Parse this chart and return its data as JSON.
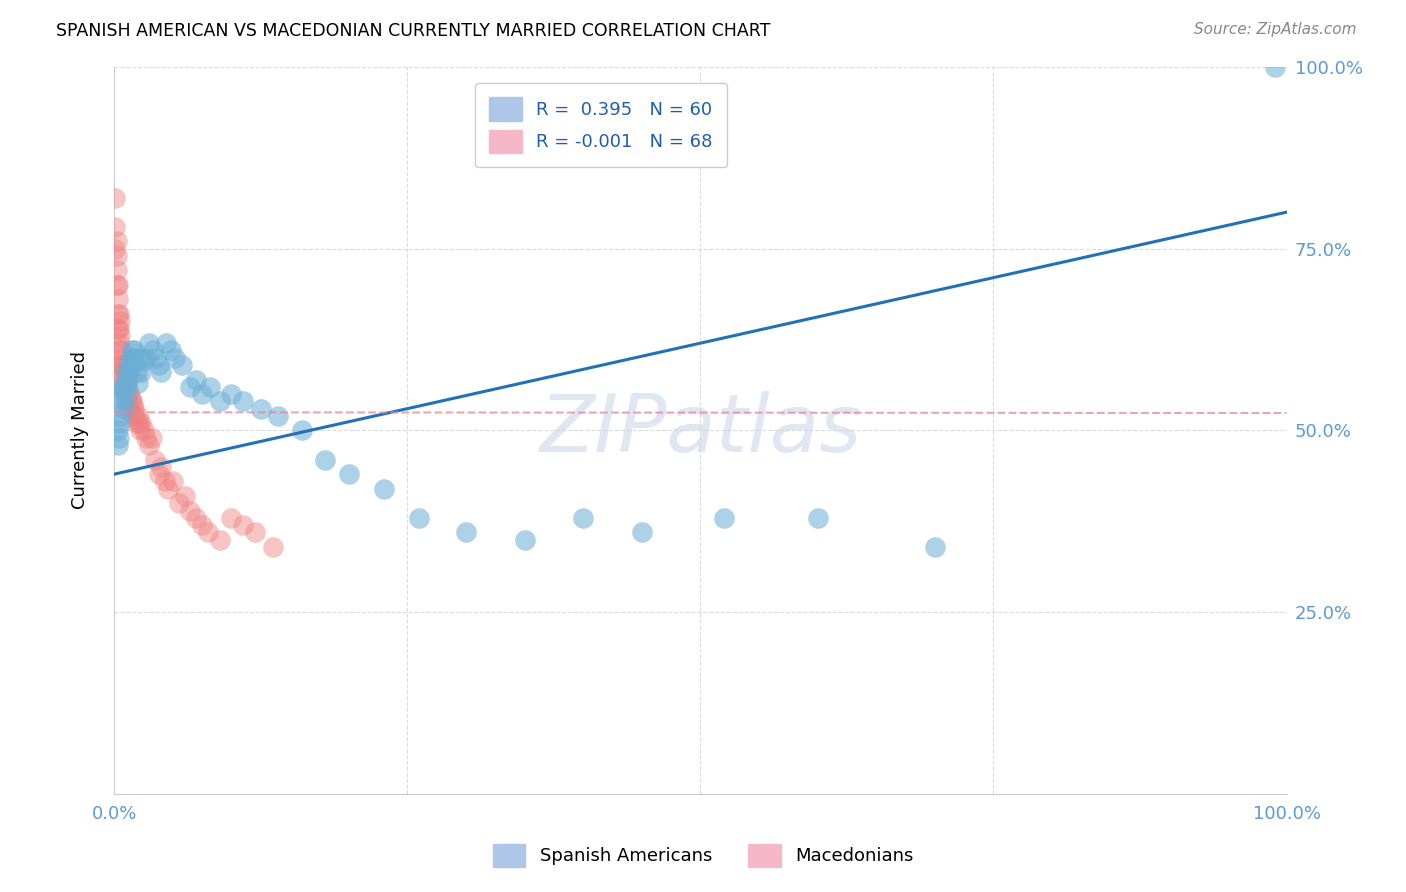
{
  "title": "SPANISH AMERICAN VS MACEDONIAN CURRENTLY MARRIED CORRELATION CHART",
  "source": "Source: ZipAtlas.com",
  "ylabel": "Currently Married",
  "xlim": [
    0,
    1.0
  ],
  "ylim": [
    0,
    1.0
  ],
  "blue_line_x": [
    0.0,
    1.0
  ],
  "blue_line_y": [
    0.44,
    0.8
  ],
  "pink_line_x": [
    0.0,
    1.0
  ],
  "pink_line_y": [
    0.525,
    0.524
  ],
  "blue_color": "#6baed6",
  "pink_color": "#f08080",
  "blue_fill_color": "#aec6e8",
  "pink_fill_color": "#f4b8c8",
  "blue_line_color": "#2171b5",
  "pink_line_color": "#e8849a",
  "watermark_color": "#ccd8ea",
  "grid_color": "#cccccc",
  "background_color": "#ffffff",
  "legend_r_blue": "R =  0.395",
  "legend_n_blue": "N = 60",
  "legend_r_pink": "R = -0.001",
  "legend_n_pink": "N = 68",
  "blue_scatter_x": [
    0.003,
    0.003,
    0.004,
    0.004,
    0.005,
    0.006,
    0.006,
    0.007,
    0.007,
    0.008,
    0.009,
    0.01,
    0.01,
    0.011,
    0.012,
    0.013,
    0.013,
    0.014,
    0.015,
    0.015,
    0.016,
    0.017,
    0.018,
    0.019,
    0.02,
    0.022,
    0.023,
    0.025,
    0.027,
    0.03,
    0.033,
    0.036,
    0.038,
    0.04,
    0.044,
    0.048,
    0.052,
    0.058,
    0.065,
    0.07,
    0.075,
    0.082,
    0.09,
    0.1,
    0.11,
    0.125,
    0.14,
    0.16,
    0.18,
    0.2,
    0.23,
    0.26,
    0.3,
    0.35,
    0.4,
    0.45,
    0.52,
    0.6,
    0.7,
    0.99
  ],
  "blue_scatter_y": [
    0.5,
    0.48,
    0.52,
    0.49,
    0.51,
    0.545,
    0.56,
    0.555,
    0.54,
    0.53,
    0.56,
    0.58,
    0.545,
    0.565,
    0.57,
    0.58,
    0.59,
    0.6,
    0.61,
    0.59,
    0.6,
    0.61,
    0.595,
    0.58,
    0.565,
    0.6,
    0.58,
    0.595,
    0.6,
    0.62,
    0.61,
    0.6,
    0.59,
    0.58,
    0.62,
    0.61,
    0.6,
    0.59,
    0.56,
    0.57,
    0.55,
    0.56,
    0.54,
    0.55,
    0.54,
    0.53,
    0.52,
    0.5,
    0.46,
    0.44,
    0.42,
    0.38,
    0.36,
    0.35,
    0.38,
    0.36,
    0.38,
    0.38,
    0.34,
    1.0
  ],
  "pink_scatter_x": [
    0.001,
    0.001,
    0.001,
    0.002,
    0.002,
    0.002,
    0.002,
    0.003,
    0.003,
    0.003,
    0.003,
    0.004,
    0.004,
    0.004,
    0.005,
    0.005,
    0.005,
    0.005,
    0.006,
    0.006,
    0.006,
    0.007,
    0.007,
    0.007,
    0.008,
    0.008,
    0.009,
    0.009,
    0.01,
    0.01,
    0.011,
    0.011,
    0.012,
    0.012,
    0.013,
    0.013,
    0.014,
    0.015,
    0.015,
    0.016,
    0.017,
    0.018,
    0.019,
    0.02,
    0.021,
    0.022,
    0.023,
    0.025,
    0.027,
    0.03,
    0.032,
    0.035,
    0.038,
    0.04,
    0.043,
    0.046,
    0.05,
    0.055,
    0.06,
    0.065,
    0.07,
    0.075,
    0.08,
    0.09,
    0.1,
    0.11,
    0.12,
    0.135
  ],
  "pink_scatter_y": [
    0.82,
    0.78,
    0.75,
    0.76,
    0.74,
    0.72,
    0.7,
    0.7,
    0.68,
    0.66,
    0.64,
    0.66,
    0.64,
    0.62,
    0.65,
    0.63,
    0.61,
    0.59,
    0.61,
    0.59,
    0.57,
    0.6,
    0.58,
    0.56,
    0.59,
    0.57,
    0.58,
    0.56,
    0.57,
    0.55,
    0.56,
    0.54,
    0.555,
    0.535,
    0.55,
    0.53,
    0.545,
    0.54,
    0.52,
    0.535,
    0.53,
    0.52,
    0.51,
    0.52,
    0.51,
    0.5,
    0.51,
    0.5,
    0.49,
    0.48,
    0.49,
    0.46,
    0.44,
    0.45,
    0.43,
    0.42,
    0.43,
    0.4,
    0.41,
    0.39,
    0.38,
    0.37,
    0.36,
    0.35,
    0.38,
    0.37,
    0.36,
    0.34
  ]
}
